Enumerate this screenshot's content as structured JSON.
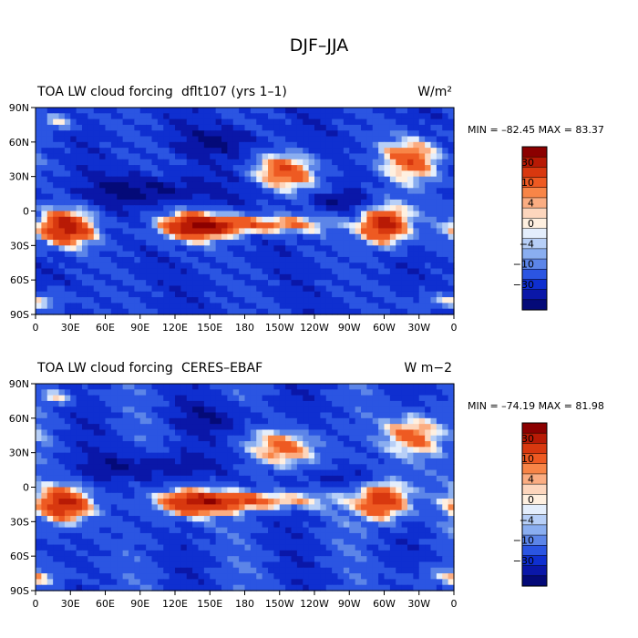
{
  "figure_title": "DJF–JJA",
  "colorbar": {
    "colors": [
      "#8b0000",
      "#b81a05",
      "#d8380f",
      "#ee5a22",
      "#f88547",
      "#fbad82",
      "#fdd6bd",
      "#fff0e0",
      "#e4eefc",
      "#b7cff7",
      "#8aaef0",
      "#5c85e8",
      "#2b55e2",
      "#0f2fd0",
      "#0a17a8",
      "#040a78"
    ],
    "labels": [
      "30",
      "10",
      "4",
      "0",
      "−4",
      "−10",
      "−30"
    ]
  },
  "chart_data": [
    {
      "type": "heatmap",
      "title_left": "TOA LW cloud forcing",
      "title_center": "dflt107 (yrs 1–1)",
      "units": "W/m²",
      "stats": {
        "min": -82.45,
        "max": 83.37,
        "text": "MIN = –82.45  MAX =  83.37"
      },
      "xlabels": [
        "0",
        "30E",
        "60E",
        "90E",
        "120E",
        "150E",
        "180",
        "150W",
        "120W",
        "90W",
        "60W",
        "30W",
        "0"
      ],
      "ylabels": [
        "90N",
        "60N",
        "30N",
        "0",
        "30S",
        "60S",
        "90S"
      ],
      "xlim": [
        0,
        360
      ],
      "ylim": [
        -90,
        90
      ],
      "colorbar_levels": [
        -40,
        -30,
        -20,
        -10,
        -6,
        -4,
        -2,
        0,
        2,
        4,
        6,
        10,
        20,
        30,
        40
      ]
    },
    {
      "type": "heatmap",
      "title_left": "TOA LW cloud forcing",
      "title_center": "CERES–EBAF",
      "units": "W m−2",
      "stats": {
        "min": -74.19,
        "max": 81.98,
        "text": "MIN = –74.19  MAX =  81.98"
      },
      "xlabels": [
        "0",
        "30E",
        "60E",
        "90E",
        "120E",
        "150E",
        "180",
        "150W",
        "120W",
        "90W",
        "60W",
        "30W",
        "0"
      ],
      "ylabels": [
        "90N",
        "60N",
        "30N",
        "0",
        "30S",
        "60S",
        "90S"
      ],
      "xlim": [
        0,
        360
      ],
      "ylim": [
        -90,
        90
      ],
      "colorbar_levels": [
        -40,
        -30,
        -20,
        -10,
        -6,
        -4,
        -2,
        0,
        2,
        4,
        6,
        10,
        20,
        30,
        40
      ]
    }
  ]
}
